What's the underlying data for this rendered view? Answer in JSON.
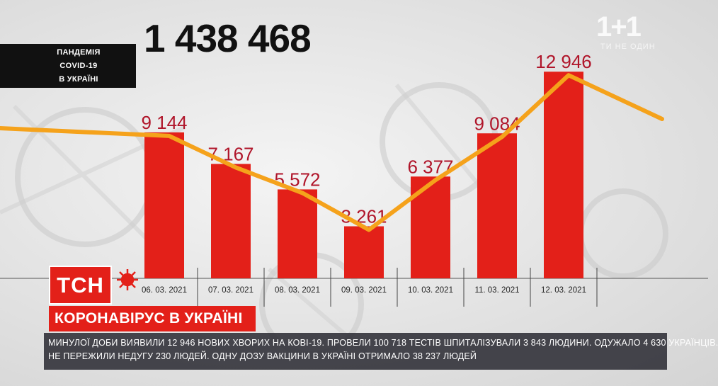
{
  "topic": {
    "line1": "ПАНДЕМІЯ",
    "line2": "COVID-19",
    "line3": "В УКРАЇНІ"
  },
  "total_cases": "1 438 468",
  "channel": {
    "logo": "1+1",
    "sub": "ТИ НЕ ОДИН"
  },
  "tsn_logo": "ТСН",
  "headline": "КОРОНАВІРУС В УКРАЇНІ",
  "ticker": {
    "line1": "МИНУЛОЇ ДОБИ ВИЯВИЛИ 12 946 НОВИХ ХВОРИХ НА КОВІ-19. ПРОВЕЛИ 100 718 ТЕСТІВ ШПИТАЛІЗУВАЛИ 3 843 ЛЮДИНИ. ОДУЖАЛО 4 630 УКРАЇНЦІВ.",
    "line2": "НЕ ПЕРЕЖИЛИ НЕДУГУ 230 ЛЮДЕЙ. ОДНУ ДОЗУ ВАКЦИНИ В УКРАЇНІ ОТРИМАЛО 38 237 ЛЮДЕЙ"
  },
  "colors": {
    "bar": "#e32019",
    "trend": "#f5a21b",
    "value_label": "#b0152a",
    "tsn_red": "#e32019"
  },
  "chart_data": {
    "type": "bar",
    "categories": [
      "06. 03. 2021",
      "07. 03. 2021",
      "08. 03. 2021",
      "09. 03. 2021",
      "10. 03. 2021",
      "11. 03. 2021",
      "12. 03. 2021"
    ],
    "values": [
      9144,
      7167,
      5572,
      3261,
      6377,
      9084,
      12946
    ],
    "value_labels": [
      "9 144",
      "7 167",
      "5 572",
      "3 261",
      "6 377",
      "9 084",
      "12 946"
    ],
    "trend_line": true,
    "title": "",
    "xlabel": "",
    "ylabel": "",
    "ylim": [
      0,
      14000
    ],
    "grid": false
  }
}
